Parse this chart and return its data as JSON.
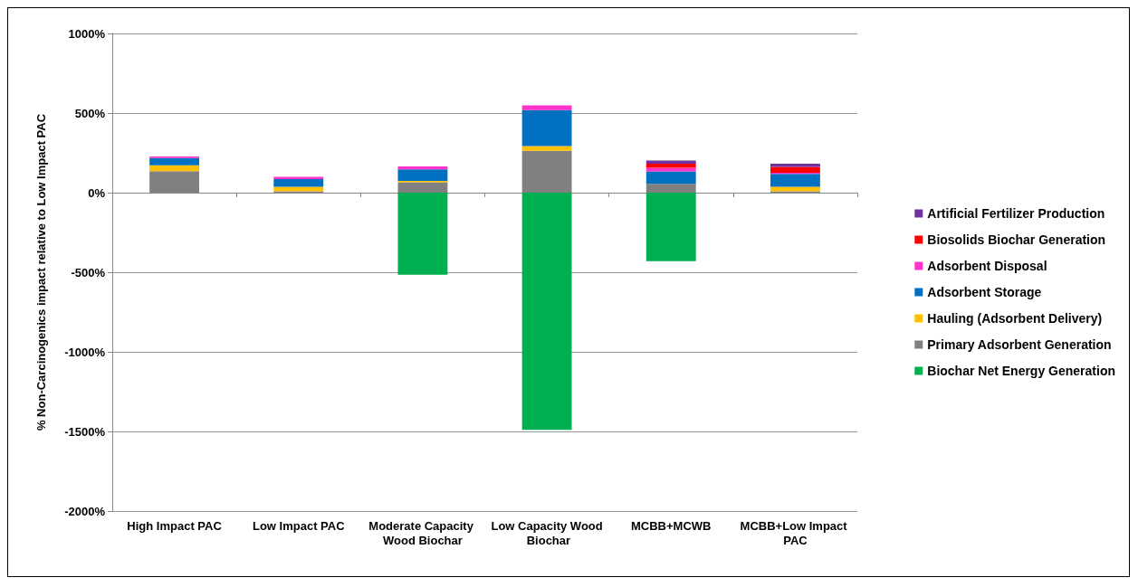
{
  "chart_data": {
    "type": "bar",
    "stacked": true,
    "ylabel": "% Non-Carcinogenics impact relative to Low Impact PAC",
    "categories": [
      "High Impact PAC",
      "Low Impact PAC",
      "Moderate Capacity Wood Biochar",
      "Low Capacity Wood Biochar",
      "MCBB+MCWB",
      "MCBB+Low Impact PAC"
    ],
    "series": [
      {
        "name": "Biochar Net Energy Generation",
        "color": "#00b050",
        "values": [
          null,
          null,
          -515,
          -1490,
          -430,
          null
        ]
      },
      {
        "name": "Primary Adsorbent Generation",
        "color": "#808080",
        "values": [
          135,
          9,
          65,
          263,
          56,
          9
        ]
      },
      {
        "name": "Hauling (Adsorbent Delivery)",
        "color": "#ffc000",
        "values": [
          37,
          28,
          9,
          30,
          null,
          28
        ]
      },
      {
        "name": "Adsorbent Storage",
        "color": "#0070c0",
        "values": [
          46,
          48,
          72,
          226,
          78,
          81
        ]
      },
      {
        "name": "Adsorbent Disposal",
        "color": "#ff33cc",
        "values": [
          9,
          15,
          19,
          30,
          22,
          7
        ]
      },
      {
        "name": "Biosolids Biochar Generation",
        "color": "#ff0000",
        "values": [
          null,
          null,
          null,
          null,
          26,
          37
        ]
      },
      {
        "name": "Artificial Fertilizer Production",
        "color": "#7030a0",
        "values": [
          null,
          null,
          null,
          null,
          20,
          20
        ]
      }
    ],
    "ylim": [
      -2000,
      1000
    ],
    "yticks": [
      {
        "value": -2000,
        "label": "-2000%"
      },
      {
        "value": -1500,
        "label": "-1500%"
      },
      {
        "value": -1000,
        "label": "-1000%"
      },
      {
        "value": -500,
        "label": "-500%"
      },
      {
        "value": 0,
        "label": "0%"
      },
      {
        "value": 500,
        "label": "500%"
      },
      {
        "value": 1000,
        "label": "1000%"
      }
    ],
    "grid": "y",
    "legend": "right"
  }
}
